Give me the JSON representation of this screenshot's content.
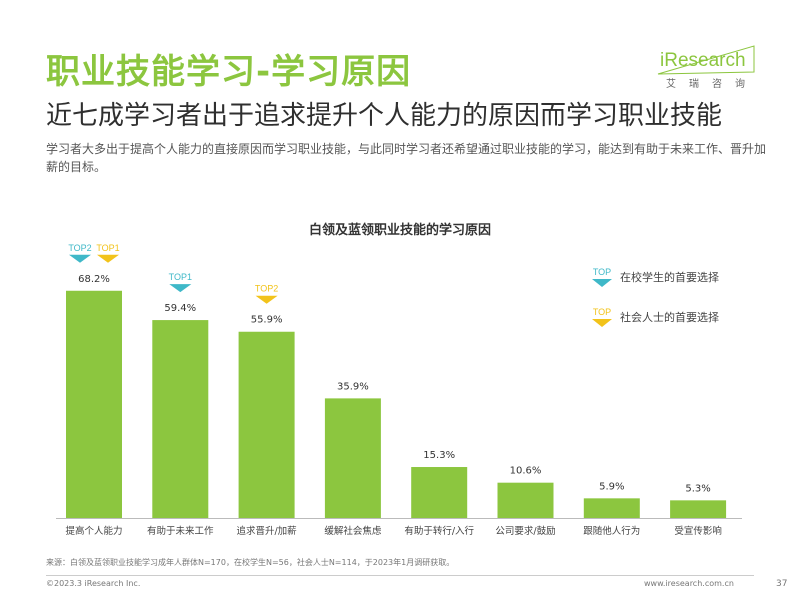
{
  "header": {
    "title": "职业技能学习-学习原因",
    "subtitle": "近七成学习者出于追求提升个人能力的原因而学习职业技能",
    "description": "学习者大多出于提高个人能力的直接原因而学习职业技能，与此同时学习者还希望通过职业技能的学习，能达到有助于未来工作、晋升加薪的目标。"
  },
  "logo": {
    "brand": "iResearch",
    "sub": "艾瑞咨询",
    "accent": "#8cc63f"
  },
  "legend": {
    "student": {
      "tag": "TOP",
      "label": "在校学生的首要选择",
      "color": "#3fb8c8"
    },
    "social": {
      "tag": "TOP",
      "label": "社会人士的首要选择",
      "color": "#f2c31a"
    }
  },
  "chart_data": {
    "type": "bar",
    "title": "白领及蓝领职业技能的学习原因",
    "categories": [
      "提高个人能力",
      "有助于未来工作",
      "追求晋升/加薪",
      "缓解社会焦虑",
      "有助于转行/入行",
      "公司要求/鼓励",
      "跟随他人行为",
      "受宣传影响"
    ],
    "values": [
      68.2,
      59.4,
      55.9,
      35.9,
      15.3,
      10.6,
      5.9,
      5.3
    ],
    "value_labels": [
      "68.2%",
      "59.4%",
      "55.9%",
      "35.9%",
      "15.3%",
      "10.6%",
      "5.9%",
      "5.3%"
    ],
    "ylim": [
      0,
      75
    ],
    "bar_color": "#8cc63f",
    "top_tags": [
      {
        "index": 0,
        "tags": [
          {
            "text": "TOP2",
            "group": "student"
          },
          {
            "text": "TOP1",
            "group": "social"
          }
        ]
      },
      {
        "index": 1,
        "tags": [
          {
            "text": "TOP1",
            "group": "student"
          }
        ]
      },
      {
        "index": 2,
        "tags": [
          {
            "text": "TOP2",
            "group": "social"
          }
        ]
      }
    ]
  },
  "footer": {
    "source": "来源：白领及蓝领职业技能学习成年人群体N=170，在校学生N=56，社会人士N=114，于2023年1月调研获取。",
    "copyright": "©2023.3 iResearch Inc.",
    "url": "www.iresearch.com.cn",
    "page": "37"
  }
}
